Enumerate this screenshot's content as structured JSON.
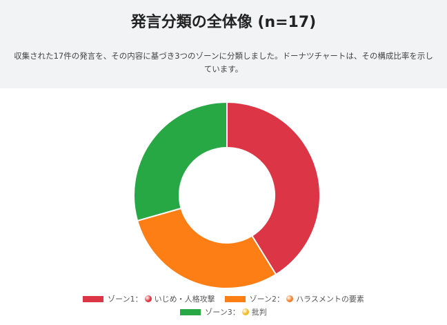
{
  "header": {
    "title": "発言分類の全体像 (n=17)",
    "description": "収集された17件の発言を、その内容に基づき3つのゾーンに分類しました。ドーナツチャートは、その構成比率を示しています。"
  },
  "chart_data": {
    "type": "pie",
    "donut": true,
    "categories": [
      "ゾーン1：🔴 いじめ・人格攻撃",
      "ゾーン2：🟠 ハラスメントの要素",
      "ゾーン3：🟡 批判"
    ],
    "values": [
      7,
      5,
      5
    ],
    "colors": [
      "#dc3545",
      "#fd7e14",
      "#28a745"
    ],
    "legend_position": "bottom"
  },
  "legend": [
    {
      "zone": "ゾーン1：",
      "text": "いじめ・人格攻撃",
      "color": "#dc3545",
      "dot_color": "#e0303a",
      "dot_icon": "red-circle-icon"
    },
    {
      "zone": "ゾーン2：",
      "text": "ハラスメントの要素",
      "color": "#fd7e14",
      "dot_color": "#f47c2a",
      "dot_icon": "orange-circle-icon"
    },
    {
      "zone": "ゾーン3：",
      "text": "批判",
      "color": "#28a745",
      "dot_color": "#f2b91f",
      "dot_icon": "yellow-circle-icon"
    }
  ]
}
